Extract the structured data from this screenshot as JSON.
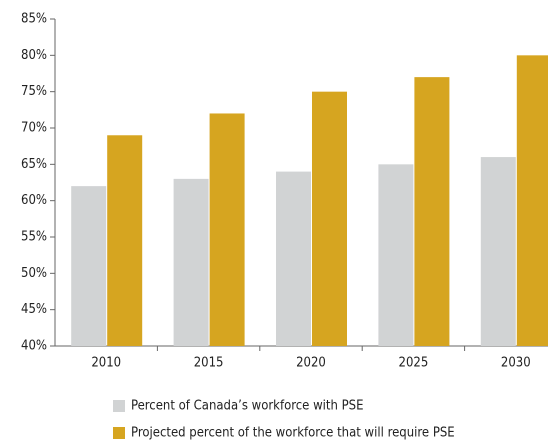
{
  "chart_data": {
    "type": "bar",
    "categories": [
      "2010",
      "2015",
      "2020",
      "2025",
      "2030"
    ],
    "series": [
      {
        "name": "Percent of Canada’s workforce with PSE",
        "color": "#d1d3d4",
        "values": [
          62,
          63,
          64,
          65,
          66
        ]
      },
      {
        "name": "Projected percent of the workforce that will require PSE",
        "color": "#d6a520",
        "values": [
          69,
          72,
          75,
          77,
          80
        ]
      }
    ],
    "ylim": [
      40,
      85
    ],
    "yticks": [
      {
        "value": 40,
        "label": "40%"
      },
      {
        "value": 45,
        "label": "45%"
      },
      {
        "value": 50,
        "label": "50%"
      },
      {
        "value": 55,
        "label": "55%"
      },
      {
        "value": 60,
        "label": "60%"
      },
      {
        "value": 65,
        "label": "65%"
      },
      {
        "value": 70,
        "label": "70%"
      },
      {
        "value": 75,
        "label": "75%"
      },
      {
        "value": 80,
        "label": "80%"
      },
      {
        "value": 85,
        "label": "85%"
      }
    ],
    "grid": false,
    "legend": "bottom"
  }
}
